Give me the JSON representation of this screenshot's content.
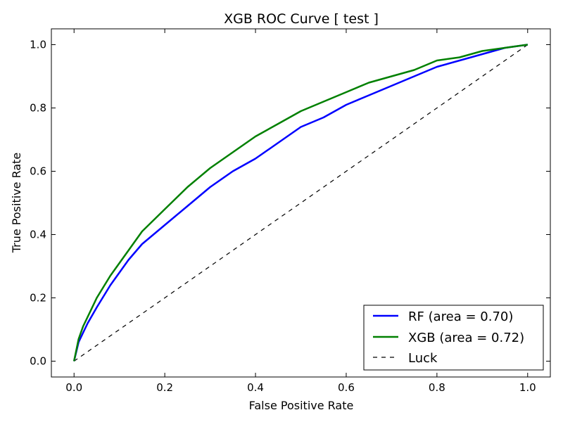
{
  "chart_data": {
    "type": "line",
    "title": "XGB ROC Curve [ test ]",
    "xlabel": "False Positive Rate",
    "ylabel": "True Positive Rate",
    "xlim": [
      -0.05,
      1.05
    ],
    "ylim": [
      -0.05,
      1.05
    ],
    "xticks": [
      0.0,
      0.2,
      0.4,
      0.6,
      0.8,
      1.0
    ],
    "yticks": [
      0.0,
      0.2,
      0.4,
      0.6,
      0.8,
      1.0
    ],
    "xtick_labels": [
      "0.0",
      "0.2",
      "0.4",
      "0.6",
      "0.8",
      "1.0"
    ],
    "ytick_labels": [
      "0.0",
      "0.2",
      "0.4",
      "0.6",
      "0.8",
      "1.0"
    ],
    "grid": false,
    "legend_position": "bottom-right",
    "series": [
      {
        "name": "RF (area = 0.70)",
        "color": "#0000ff",
        "style": "solid",
        "x": [
          0.0,
          0.01,
          0.02,
          0.03,
          0.05,
          0.08,
          0.1,
          0.12,
          0.15,
          0.2,
          0.25,
          0.3,
          0.35,
          0.4,
          0.45,
          0.5,
          0.55,
          0.6,
          0.65,
          0.7,
          0.75,
          0.8,
          0.85,
          0.9,
          0.95,
          1.0
        ],
        "y": [
          0.0,
          0.06,
          0.09,
          0.12,
          0.17,
          0.24,
          0.28,
          0.32,
          0.37,
          0.43,
          0.49,
          0.55,
          0.6,
          0.64,
          0.69,
          0.74,
          0.77,
          0.81,
          0.84,
          0.87,
          0.9,
          0.93,
          0.95,
          0.97,
          0.99,
          1.0
        ]
      },
      {
        "name": "XGB (area = 0.72)",
        "color": "#008000",
        "style": "solid",
        "x": [
          0.0,
          0.01,
          0.02,
          0.03,
          0.05,
          0.08,
          0.1,
          0.12,
          0.15,
          0.2,
          0.25,
          0.3,
          0.35,
          0.4,
          0.45,
          0.5,
          0.55,
          0.6,
          0.65,
          0.7,
          0.75,
          0.8,
          0.85,
          0.9,
          0.95,
          1.0
        ],
        "y": [
          0.0,
          0.07,
          0.11,
          0.14,
          0.2,
          0.27,
          0.31,
          0.35,
          0.41,
          0.48,
          0.55,
          0.61,
          0.66,
          0.71,
          0.75,
          0.79,
          0.82,
          0.85,
          0.88,
          0.9,
          0.92,
          0.95,
          0.96,
          0.98,
          0.99,
          1.0
        ]
      },
      {
        "name": "Luck",
        "color": "#000000",
        "style": "dashed",
        "x": [
          0.0,
          1.0
        ],
        "y": [
          0.0,
          1.0
        ]
      }
    ]
  }
}
